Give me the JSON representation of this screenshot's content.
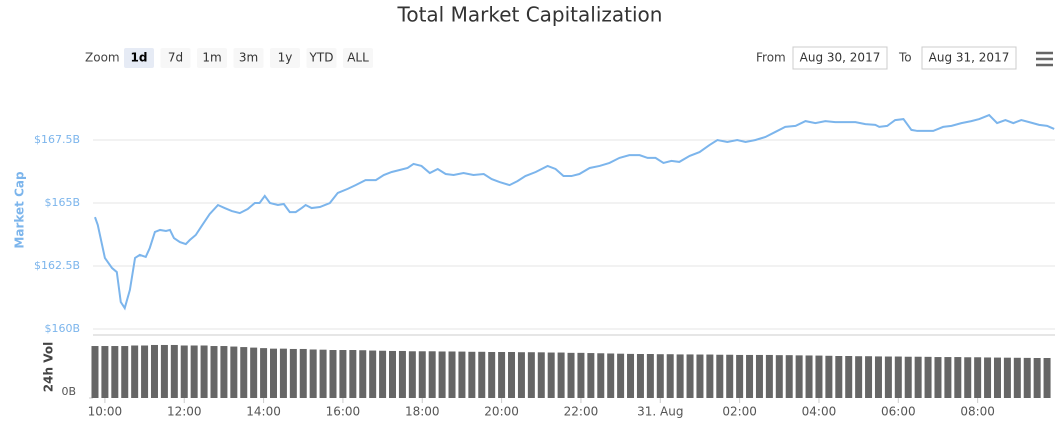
{
  "controls": {
    "zoom_label": "Zoom",
    "zoom_buttons": [
      "1d",
      "7d",
      "1m",
      "3m",
      "1y",
      "YTD",
      "ALL"
    ],
    "selected_zoom": "1d",
    "from_label": "From",
    "from_value": "Aug 30, 2017",
    "to_label": "To",
    "to_value": "Aug 31, 2017"
  },
  "chart_data": [
    {
      "type": "line",
      "title": "Total Market Capitalization",
      "y_label": "Market Cap",
      "color": "#7cb5ec",
      "grid": true,
      "xlim": [
        9.7,
        33.95
      ],
      "ylim": [
        160,
        170
      ],
      "yticks": [
        {
          "value": 160,
          "label": "$160B"
        },
        {
          "value": 162.5,
          "label": "$162.5B"
        },
        {
          "value": 165,
          "label": "$165B"
        },
        {
          "value": 167.5,
          "label": "$167.5B"
        }
      ],
      "x": [
        9.75,
        9.82,
        10.0,
        10.18,
        10.3,
        10.4,
        10.5,
        10.63,
        10.76,
        10.88,
        11.03,
        11.13,
        11.26,
        11.39,
        11.54,
        11.64,
        11.74,
        11.89,
        12.04,
        12.14,
        12.29,
        12.44,
        12.64,
        12.85,
        13.02,
        13.2,
        13.4,
        13.6,
        13.78,
        13.9,
        14.03,
        14.16,
        14.36,
        14.51,
        14.66,
        14.81,
        14.96,
        15.06,
        15.21,
        15.42,
        15.67,
        15.87,
        16.12,
        16.32,
        16.57,
        16.83,
        17.03,
        17.23,
        17.43,
        17.63,
        17.78,
        17.98,
        18.19,
        18.39,
        18.59,
        18.79,
        19.04,
        19.29,
        19.55,
        19.75,
        19.95,
        20.2,
        20.4,
        20.6,
        20.86,
        21.16,
        21.36,
        21.56,
        21.76,
        21.96,
        22.22,
        22.47,
        22.72,
        22.97,
        23.22,
        23.48,
        23.68,
        23.88,
        24.08,
        24.28,
        24.48,
        24.74,
        24.99,
        25.24,
        25.44,
        25.69,
        25.94,
        26.15,
        26.4,
        26.65,
        26.9,
        27.15,
        27.41,
        27.66,
        27.91,
        28.16,
        28.41,
        28.66,
        28.92,
        29.17,
        29.42,
        29.52,
        29.72,
        29.92,
        30.13,
        30.33,
        30.48,
        30.68,
        30.88,
        31.13,
        31.34,
        31.59,
        31.84,
        32.04,
        32.29,
        32.49,
        32.7,
        32.9,
        33.1,
        33.3,
        33.55,
        33.75,
        33.93
      ],
      "values": [
        164.44,
        164.13,
        162.82,
        162.42,
        162.26,
        161.07,
        160.83,
        161.55,
        162.82,
        162.94,
        162.86,
        163.21,
        163.85,
        163.93,
        163.89,
        163.93,
        163.61,
        163.45,
        163.37,
        163.53,
        163.73,
        164.09,
        164.56,
        164.92,
        164.8,
        164.68,
        164.6,
        164.76,
        165.0,
        165.0,
        165.28,
        165.0,
        164.92,
        164.96,
        164.64,
        164.64,
        164.8,
        164.92,
        164.8,
        164.84,
        165.0,
        165.4,
        165.56,
        165.71,
        165.91,
        165.91,
        166.11,
        166.23,
        166.31,
        166.39,
        166.55,
        166.47,
        166.19,
        166.35,
        166.15,
        166.11,
        166.19,
        166.11,
        166.15,
        165.95,
        165.83,
        165.71,
        165.87,
        166.07,
        166.23,
        166.47,
        166.35,
        166.07,
        166.07,
        166.15,
        166.39,
        166.47,
        166.59,
        166.79,
        166.9,
        166.9,
        166.79,
        166.79,
        166.59,
        166.67,
        166.63,
        166.87,
        167.02,
        167.3,
        167.5,
        167.42,
        167.5,
        167.42,
        167.5,
        167.62,
        167.82,
        168.02,
        168.06,
        168.25,
        168.17,
        168.25,
        168.21,
        168.21,
        168.21,
        168.13,
        168.1,
        168.02,
        168.06,
        168.29,
        168.33,
        167.9,
        167.86,
        167.86,
        167.86,
        168.02,
        168.06,
        168.17,
        168.25,
        168.33,
        168.49,
        168.17,
        168.29,
        168.17,
        168.29,
        168.21,
        168.1,
        168.06,
        167.94
      ]
    },
    {
      "type": "bar",
      "y_label": "24h Vol",
      "color": "#666666",
      "xlim": [
        9.7,
        33.95
      ],
      "ylim": [
        0,
        6
      ],
      "yticks": [
        {
          "value": 0,
          "label": "0B"
        }
      ],
      "xticks": [
        {
          "value": 10,
          "label": "10:00"
        },
        {
          "value": 12,
          "label": "12:00"
        },
        {
          "value": 14,
          "label": "14:00"
        },
        {
          "value": 16,
          "label": "16:00"
        },
        {
          "value": 18,
          "label": "18:00"
        },
        {
          "value": 20,
          "label": "20:00"
        },
        {
          "value": 22,
          "label": "22:00"
        },
        {
          "value": 24,
          "label": "31. Aug"
        },
        {
          "value": 26,
          "label": "02:00"
        },
        {
          "value": 28,
          "label": "04:00"
        },
        {
          "value": 30,
          "label": "06:00"
        },
        {
          "value": 32,
          "label": "08:00"
        }
      ],
      "x": [
        9.75,
        10,
        10.25,
        10.5,
        10.75,
        11,
        11.25,
        11.5,
        11.75,
        12,
        12.25,
        12.5,
        12.75,
        13,
        13.25,
        13.5,
        13.75,
        14,
        14.25,
        14.5,
        14.75,
        15,
        15.25,
        15.5,
        15.75,
        16,
        16.25,
        16.5,
        16.75,
        17,
        17.25,
        17.5,
        17.75,
        18,
        18.25,
        18.5,
        18.75,
        19,
        19.25,
        19.5,
        19.75,
        20,
        20.25,
        20.5,
        20.75,
        21,
        21.25,
        21.5,
        21.75,
        22,
        22.25,
        22.5,
        22.75,
        23,
        23.25,
        23.5,
        23.75,
        24,
        24.25,
        24.5,
        24.75,
        25,
        25.25,
        25.5,
        25.75,
        26,
        26.25,
        26.5,
        26.75,
        27,
        27.25,
        27.5,
        27.75,
        28,
        28.25,
        28.5,
        28.75,
        29,
        29.25,
        29.5,
        29.75,
        30,
        30.25,
        30.5,
        30.75,
        31,
        31.25,
        31.5,
        31.75,
        32,
        32.25,
        32.5,
        32.75,
        33,
        33.25,
        33.5,
        33.75
      ],
      "values": [
        4.95,
        4.95,
        4.95,
        4.95,
        5.0,
        5.0,
        5.05,
        5.05,
        5.05,
        5.0,
        5.0,
        5.0,
        4.95,
        4.95,
        4.9,
        4.85,
        4.8,
        4.75,
        4.7,
        4.7,
        4.67,
        4.67,
        4.62,
        4.6,
        4.57,
        4.57,
        4.57,
        4.55,
        4.52,
        4.5,
        4.48,
        4.48,
        4.45,
        4.45,
        4.45,
        4.43,
        4.43,
        4.42,
        4.4,
        4.4,
        4.38,
        4.38,
        4.38,
        4.36,
        4.36,
        4.35,
        4.33,
        4.33,
        4.3,
        4.3,
        4.28,
        4.26,
        4.24,
        4.22,
        4.2,
        4.19,
        4.19,
        4.17,
        4.17,
        4.15,
        4.15,
        4.14,
        4.14,
        4.12,
        4.12,
        4.1,
        4.1,
        4.1,
        4.1,
        4.08,
        4.08,
        4.06,
        4.05,
        4.04,
        4.02,
        4.0,
        4.0,
        3.98,
        3.98,
        3.96,
        3.95,
        3.95,
        3.93,
        3.93,
        3.92,
        3.9,
        3.9,
        3.9,
        3.88,
        3.88,
        3.86,
        3.85,
        3.84,
        3.83,
        3.82,
        3.81,
        3.81
      ]
    }
  ]
}
